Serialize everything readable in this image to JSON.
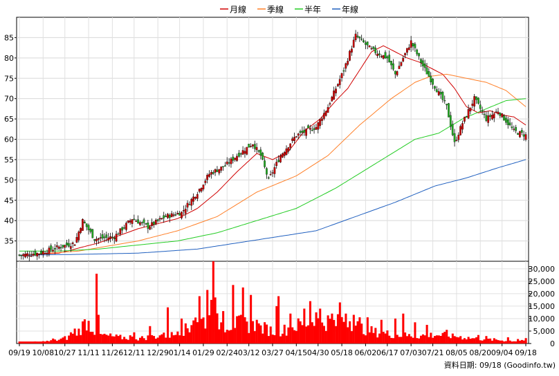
{
  "legend": [
    {
      "label": "月線",
      "color": "#d00000"
    },
    {
      "label": "季線",
      "color": "#ff7f27"
    },
    {
      "label": "半年",
      "color": "#22cc22"
    },
    {
      "label": "年線",
      "color": "#1f5fbf"
    }
  ],
  "footer_text": "資料日期: 09/18 (Goodinfo.tw)",
  "chart_data": [
    {
      "type": "candlestick",
      "title": "",
      "ylim": [
        30,
        90
      ],
      "yticks": [
        35,
        40,
        45,
        50,
        55,
        60,
        65,
        70,
        75,
        80,
        85
      ],
      "x_ticks": [
        "09/19",
        "10/08",
        "10/27",
        "11/11",
        "11/26",
        "12/11",
        "12/29",
        "01/14",
        "01/29",
        "02/24",
        "03/12",
        "03/27",
        "04/15",
        "04/30",
        "05/18",
        "06/02",
        "06/17",
        "07/03",
        "07/21",
        "08/05",
        "08/20",
        "09/04",
        "09/18"
      ],
      "colors": {
        "up": "#cc0000",
        "down": "#22aa22"
      },
      "close_anchors": [
        [
          0,
          31.5
        ],
        [
          10,
          32
        ],
        [
          20,
          33.5
        ],
        [
          28,
          34.5
        ],
        [
          32,
          40
        ],
        [
          38,
          35.5
        ],
        [
          48,
          36
        ],
        [
          57,
          40.5
        ],
        [
          65,
          38.5
        ],
        [
          74,
          41
        ],
        [
          82,
          42
        ],
        [
          90,
          47
        ],
        [
          96,
          51.5
        ],
        [
          104,
          53.5
        ],
        [
          110,
          56
        ],
        [
          118,
          59
        ],
        [
          122,
          56
        ],
        [
          126,
          50
        ],
        [
          132,
          56
        ],
        [
          140,
          61
        ],
        [
          150,
          63
        ],
        [
          156,
          68
        ],
        [
          164,
          77
        ],
        [
          170,
          85.5
        ],
        [
          178,
          82
        ],
        [
          186,
          80
        ],
        [
          190,
          76
        ],
        [
          198,
          84
        ],
        [
          204,
          78
        ],
        [
          210,
          73
        ],
        [
          216,
          68
        ],
        [
          220,
          59
        ],
        [
          224,
          64
        ],
        [
          230,
          70
        ],
        [
          236,
          65
        ],
        [
          242,
          67
        ],
        [
          250,
          62
        ],
        [
          256,
          61
        ]
      ],
      "series": [
        {
          "name": "月線",
          "color": "#d00000",
          "anchors": [
            [
              0,
              31.5
            ],
            [
              20,
              32
            ],
            [
              40,
              34.5
            ],
            [
              60,
              38
            ],
            [
              80,
              40.5
            ],
            [
              90,
              43
            ],
            [
              100,
              47
            ],
            [
              110,
              52
            ],
            [
              120,
              56.5
            ],
            [
              128,
              55
            ],
            [
              136,
              57
            ],
            [
              144,
              62
            ],
            [
              152,
              65
            ],
            [
              160,
              69.5
            ],
            [
              166,
              72.5
            ],
            [
              172,
              77
            ],
            [
              178,
              81.5
            ],
            [
              184,
              83
            ],
            [
              190,
              81.5
            ],
            [
              196,
              80
            ],
            [
              202,
              79
            ],
            [
              208,
              77.5
            ],
            [
              214,
              76
            ],
            [
              220,
              72.5
            ],
            [
              226,
              68
            ],
            [
              232,
              66.5
            ],
            [
              238,
              67
            ],
            [
              244,
              66
            ],
            [
              250,
              65.5
            ],
            [
              256,
              63.5
            ]
          ]
        },
        {
          "name": "季線",
          "color": "#ff7f27",
          "anchors": [
            [
              0,
              31.5
            ],
            [
              30,
              32.5
            ],
            [
              60,
              35
            ],
            [
              80,
              37.5
            ],
            [
              100,
              41
            ],
            [
              120,
              47
            ],
            [
              140,
              51
            ],
            [
              156,
              56
            ],
            [
              172,
              63.5
            ],
            [
              188,
              70
            ],
            [
              200,
              74
            ],
            [
              208,
              75.5
            ],
            [
              216,
              76
            ],
            [
              226,
              75
            ],
            [
              236,
              74
            ],
            [
              246,
              72
            ],
            [
              256,
              68
            ]
          ]
        },
        {
          "name": "半年",
          "color": "#22cc22",
          "anchors": [
            [
              0,
              32.5
            ],
            [
              20,
              32.5
            ],
            [
              40,
              33
            ],
            [
              60,
              34
            ],
            [
              80,
              35
            ],
            [
              100,
              37
            ],
            [
              120,
              40
            ],
            [
              140,
              43
            ],
            [
              160,
              48
            ],
            [
              180,
              54
            ],
            [
              200,
              60
            ],
            [
              212,
              61.5
            ],
            [
              224,
              65
            ],
            [
              236,
              67.5
            ],
            [
              246,
              69.5
            ],
            [
              256,
              70
            ]
          ]
        },
        {
          "name": "年線",
          "color": "#1f5fbf",
          "anchors": [
            [
              0,
              31.5
            ],
            [
              30,
              31.7
            ],
            [
              60,
              32
            ],
            [
              90,
              33
            ],
            [
              110,
              34.5
            ],
            [
              130,
              36
            ],
            [
              150,
              37.5
            ],
            [
              170,
              41
            ],
            [
              190,
              44.5
            ],
            [
              210,
              48.5
            ],
            [
              226,
              50.5
            ],
            [
              242,
              53
            ],
            [
              256,
              55
            ]
          ]
        }
      ]
    },
    {
      "type": "bar",
      "title": "",
      "ylim": [
        0,
        33000
      ],
      "yticks": [
        0,
        5000,
        10000,
        15000,
        20000,
        25000,
        30000
      ],
      "ytick_labels": [
        "0",
        "5,000",
        "10,000",
        "15,000",
        "20,000",
        "25,000",
        "30,000"
      ],
      "color": "#ff0000",
      "baseline": 800,
      "n_bars": 257,
      "base_anchors": [
        [
          0,
          500
        ],
        [
          10,
          600
        ],
        [
          18,
          1200
        ],
        [
          25,
          2500
        ],
        [
          30,
          5000
        ],
        [
          34,
          9000
        ],
        [
          40,
          3500
        ],
        [
          50,
          2500
        ],
        [
          60,
          2000
        ],
        [
          70,
          3000
        ],
        [
          78,
          3500
        ],
        [
          85,
          6000
        ],
        [
          88,
          12000
        ],
        [
          92,
          9000
        ],
        [
          96,
          9500
        ],
        [
          104,
          7500
        ],
        [
          112,
          8000
        ],
        [
          118,
          7000
        ],
        [
          124,
          6000
        ],
        [
          130,
          4500
        ],
        [
          138,
          6500
        ],
        [
          146,
          8500
        ],
        [
          154,
          9000
        ],
        [
          160,
          8000
        ],
        [
          166,
          10000
        ],
        [
          172,
          6500
        ],
        [
          180,
          4500
        ],
        [
          190,
          3500
        ],
        [
          200,
          3000
        ],
        [
          210,
          3500
        ],
        [
          220,
          3000
        ],
        [
          230,
          2000
        ],
        [
          240,
          1500
        ],
        [
          250,
          1000
        ],
        [
          256,
          1500
        ]
      ],
      "spikes": [
        [
          17,
          2000
        ],
        [
          26,
          4500
        ],
        [
          28,
          6000
        ],
        [
          39,
          28000
        ],
        [
          40,
          11500
        ],
        [
          56,
          3300
        ],
        [
          58,
          4500
        ],
        [
          66,
          7000
        ],
        [
          72,
          3700
        ],
        [
          75,
          14500
        ],
        [
          80,
          4800
        ],
        [
          82,
          10000
        ],
        [
          86,
          4500
        ],
        [
          91,
          19000
        ],
        [
          95,
          21500
        ],
        [
          97,
          17500
        ],
        [
          98,
          33000
        ],
        [
          99,
          18500
        ],
        [
          103,
          13000
        ],
        [
          108,
          23500
        ],
        [
          113,
          22500
        ],
        [
          117,
          19500
        ],
        [
          120,
          9500
        ],
        [
          130,
          15000
        ],
        [
          131,
          19000
        ],
        [
          137,
          12000
        ],
        [
          144,
          14000
        ],
        [
          147,
          17000
        ],
        [
          150,
          12500
        ],
        [
          152,
          14000
        ],
        [
          158,
          12000
        ],
        [
          162,
          16500
        ],
        [
          165,
          12000
        ],
        [
          169,
          11500
        ],
        [
          172,
          10500
        ],
        [
          176,
          10500
        ],
        [
          183,
          9500
        ],
        [
          190,
          10000
        ],
        [
          194,
          12000
        ],
        [
          200,
          8500
        ],
        [
          206,
          7500
        ],
        [
          216,
          5500
        ],
        [
          219,
          4000
        ],
        [
          232,
          3400
        ],
        [
          236,
          3000
        ],
        [
          247,
          2500
        ],
        [
          252,
          1800
        ]
      ]
    }
  ]
}
